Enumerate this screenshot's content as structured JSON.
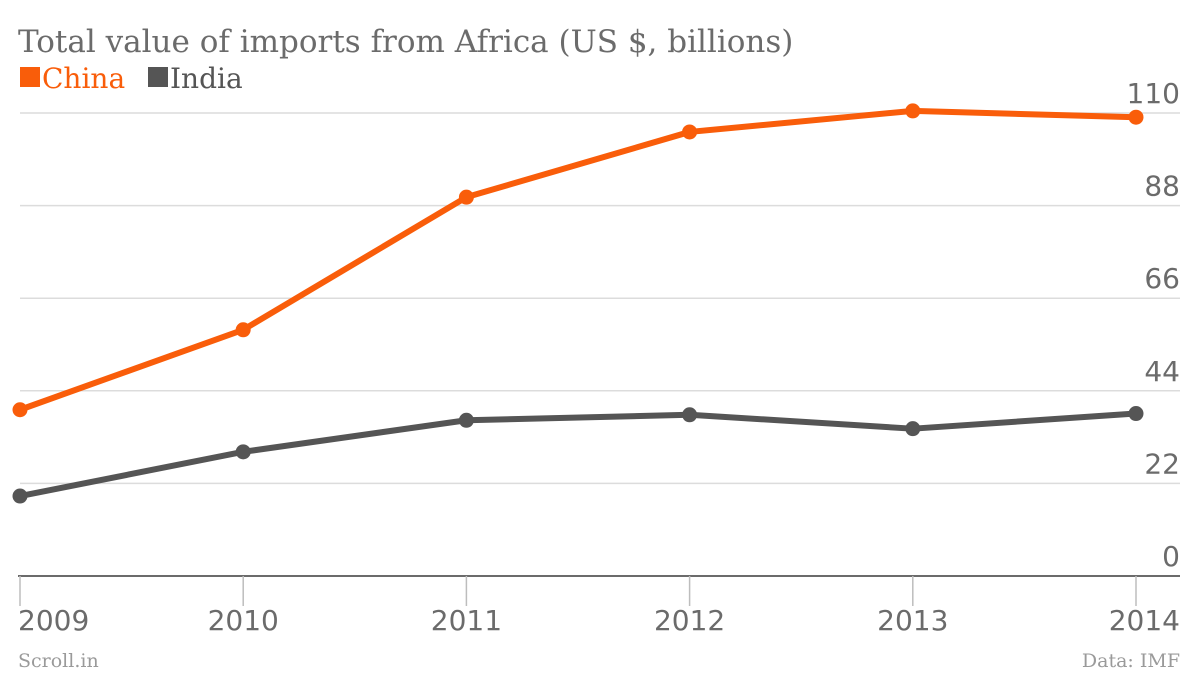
{
  "chart_data": {
    "type": "line",
    "title": "Total value of imports from Africa (US $, billions)",
    "categories": [
      "2009",
      "2010",
      "2011",
      "2012",
      "2013",
      "2014"
    ],
    "series": [
      {
        "name": "China",
        "color": "#f95d0a",
        "values": [
          39.5,
          58.5,
          90,
          105.5,
          110.5,
          109
        ]
      },
      {
        "name": "India",
        "color": "#555555",
        "values": [
          19,
          29.5,
          37,
          38.3,
          35,
          38.6
        ]
      }
    ],
    "yticks": [
      0,
      22,
      44,
      66,
      88,
      110
    ],
    "ylim": [
      0,
      110
    ],
    "grid": true,
    "legend_position": "top-left"
  },
  "footer": {
    "source_left": "Scroll.in",
    "source_right": "Data: IMF"
  }
}
